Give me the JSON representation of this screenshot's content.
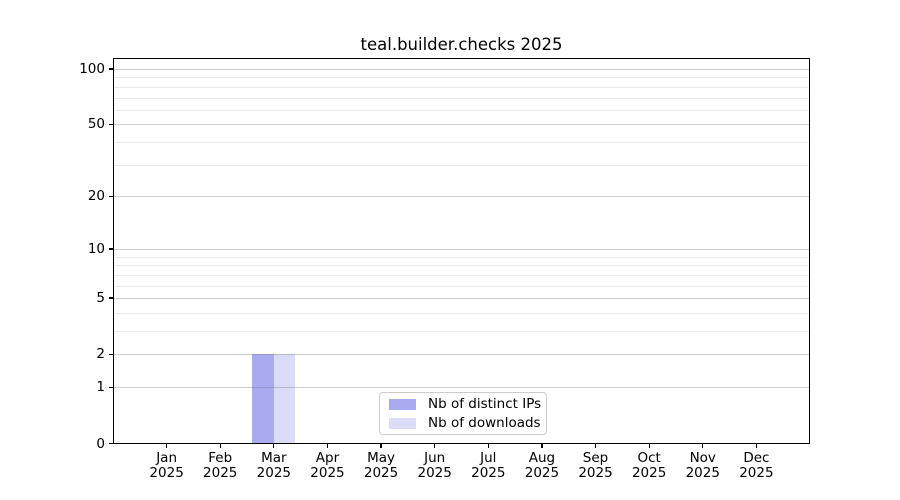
{
  "chart_data": {
    "type": "bar",
    "title": "teal.builder.checks 2025",
    "categories": [
      "Jan 2025",
      "Feb 2025",
      "Mar 2025",
      "Apr 2025",
      "May 2025",
      "Jun 2025",
      "Jul 2025",
      "Aug 2025",
      "Sep 2025",
      "Oct 2025",
      "Nov 2025",
      "Dec 2025"
    ],
    "series": [
      {
        "name": "Nb of distinct IPs",
        "color": "#aaaaf0",
        "values": [
          0,
          0,
          2,
          0,
          0,
          0,
          0,
          0,
          0,
          0,
          0,
          0
        ]
      },
      {
        "name": "Nb of downloads",
        "color": "#dcdcf8",
        "values": [
          0,
          0,
          2,
          0,
          0,
          0,
          0,
          0,
          0,
          0,
          0,
          0
        ]
      }
    ],
    "y_axis": {
      "scale": "log1p",
      "range": [
        0,
        100
      ],
      "major_ticks": [
        0,
        1,
        2,
        5,
        10,
        20,
        50,
        100
      ],
      "minor_gridlines": [
        3,
        4,
        6,
        7,
        8,
        9,
        30,
        40,
        60,
        70,
        80,
        90
      ]
    },
    "xlabel": "",
    "ylabel": "",
    "grid": true,
    "legend_position": "lower center",
    "colors": {
      "axis": "#000000",
      "major_grid": "#d0d0d0",
      "minor_grid": "#eaeaea",
      "background": "#ffffff",
      "text": "#000000"
    }
  }
}
